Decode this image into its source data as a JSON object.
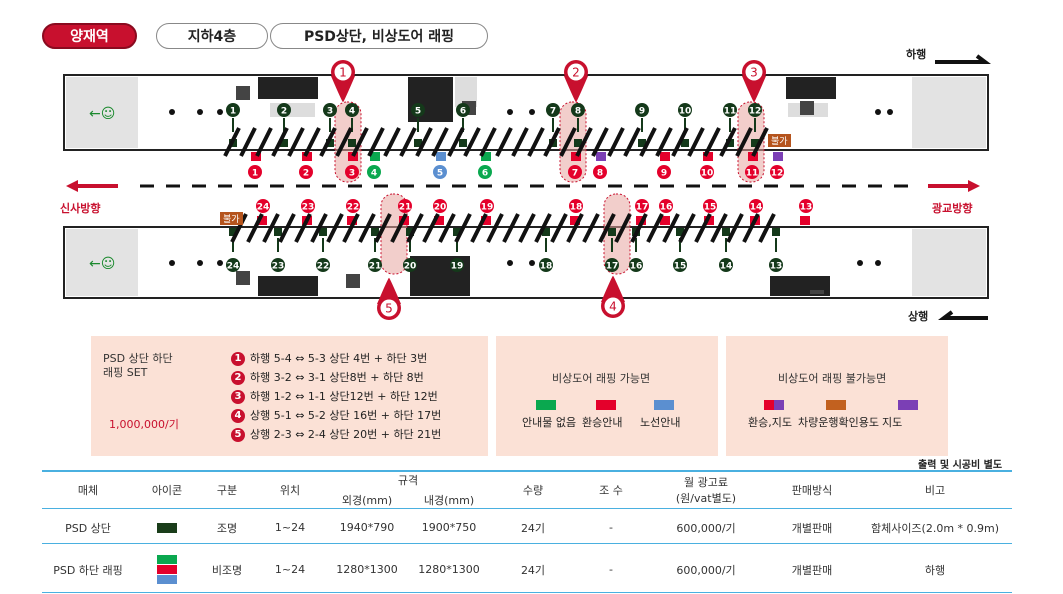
{
  "header": {
    "station": "양재역",
    "floor": "지하4층",
    "title": "PSD상단, 비상도어 래핑"
  },
  "directions": {
    "down": "하행",
    "up": "상행",
    "left": "신사방향",
    "right": "광교방향"
  },
  "top_upper_numbers": [
    "1",
    "2",
    "3",
    "4",
    "5",
    "6",
    "7",
    "8",
    "9",
    "10",
    "11",
    "12"
  ],
  "top_lower_numbers": [
    "1",
    "2",
    "3",
    "4",
    "5",
    "6",
    "7",
    "8",
    "9",
    "10",
    "11",
    "12"
  ],
  "bottom_upper_numbers": [
    "24",
    "23",
    "22",
    "21",
    "20",
    "19",
    "18",
    "17",
    "16",
    "15",
    "14",
    "13"
  ],
  "bottom_lower_numbers": [
    "24",
    "23",
    "22",
    "21",
    "20",
    "19",
    "18",
    "17",
    "16",
    "15",
    "14",
    "13"
  ],
  "callouts": [
    "1",
    "2",
    "3",
    "4",
    "5"
  ],
  "tags": {
    "fire_top": "불가",
    "fire_bottom": "불가",
    "small_label": "5가"
  },
  "legend": {
    "set_title_1": "PSD 상단 하단",
    "set_title_2": "래핑 SET",
    "set_price": "1,000,000/기",
    "items": [
      {
        "num": "1",
        "text": "하행 5-4 ⇔ 5-3  상단 4번 + 하단 3번"
      },
      {
        "num": "2",
        "text": "하행 3-2 ⇔ 3-1  상단8번 + 하단 8번"
      },
      {
        "num": "3",
        "text": "하행 1-2 ⇔ 1-1  상단12번 + 하단 12번"
      },
      {
        "num": "4",
        "text": "상행 5-1 ⇔ 5-2  상단 16번 + 하단 17번"
      },
      {
        "num": "5",
        "text": "상행 2-3 ⇔ 2-4  상단 20번 + 하단 21번"
      }
    ],
    "possible_title": "비상도어 래핑 가능면",
    "possible": [
      {
        "label": "안내물 없음",
        "color": "#0aa84f"
      },
      {
        "label": "환승안내",
        "color": "#e4002b"
      },
      {
        "label": "노선안내",
        "color": "#5b8fd0"
      }
    ],
    "impossible_title": "비상도어 래핑 불가능면",
    "impossible": [
      {
        "label": "환승,지도",
        "colors": [
          "#e4002b",
          "#7b3fb5"
        ]
      },
      {
        "label": "차량운행확인용도",
        "colors": [
          "#c2611f"
        ]
      },
      {
        "label": "지도",
        "colors": [
          "#7b3fb5"
        ]
      }
    ]
  },
  "note": "출력 및 시공비 별도",
  "table": {
    "headers": {
      "media": "매체",
      "icon": "아이콘",
      "type": "구분",
      "position": "위치",
      "spec": "규격",
      "outer": "외경(mm)",
      "inner": "내경(mm)",
      "qty": "수량",
      "sets": "조 수",
      "fee": "월 광고료",
      "fee_sub": "(원/vat별도)",
      "sale": "판매방식",
      "note": "비고"
    },
    "rows": [
      {
        "media": "PSD 상단",
        "type": "조명",
        "position": "1~24",
        "outer": "1940*790",
        "inner": "1900*750",
        "qty": "24기",
        "sets": "-",
        "fee": "600,000/기",
        "sale": "개별판매",
        "note": "함체사이즈(2.0m * 0.9m)",
        "icon_colors": [
          "#1a3d1a"
        ]
      },
      {
        "media": "PSD 하단 래핑",
        "type": "비조명",
        "position": "1~24",
        "outer": "1280*1300",
        "inner": "1280*1300",
        "qty": "24기",
        "sets": "-",
        "fee": "600,000/기",
        "sale": "개별판매",
        "note": "하행",
        "icon_colors": [
          "#0aa84f",
          "#e4002b",
          "#5b8fd0"
        ]
      }
    ]
  },
  "colors": {
    "accent": "#c8102e",
    "panel": "#fbe1d6",
    "dark_green": "#14391a",
    "line_blue": "#4ab0e0"
  }
}
